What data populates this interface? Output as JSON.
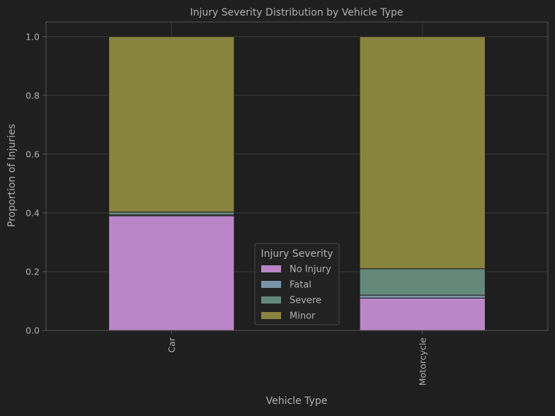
{
  "chart_data": {
    "type": "bar",
    "stacked": true,
    "title": "Injury Severity Distribution by Vehicle Type",
    "xlabel": "Vehicle Type",
    "ylabel": "Proportion of Injuries",
    "categories": [
      "Car",
      "Motorcycle"
    ],
    "ylim": [
      0,
      1.05
    ],
    "yticks": [
      0.0,
      0.2,
      0.4,
      0.6,
      0.8,
      1.0
    ],
    "ytick_labels": [
      "0.0",
      "0.2",
      "0.4",
      "0.6",
      "0.8",
      "1.0"
    ],
    "grid": true,
    "legend": {
      "title": "Injury Severity",
      "placement": "lower-center"
    },
    "series": [
      {
        "name": "No Injury",
        "color": "#bb86c8",
        "values": [
          0.39,
          0.11
        ]
      },
      {
        "name": "Fatal",
        "color": "#7a95a8",
        "values": [
          0.003,
          0.01
        ]
      },
      {
        "name": "Severe",
        "color": "#64897a",
        "values": [
          0.01,
          0.09
        ]
      },
      {
        "name": "Minor",
        "color": "#898340",
        "values": [
          0.597,
          0.79
        ]
      }
    ],
    "colors": {
      "background": "#1f1f1f",
      "grid": "#3a3a3a",
      "axis": "#555555",
      "text": "#b0b0b0",
      "bar_edge": "#1f1f1f"
    }
  }
}
